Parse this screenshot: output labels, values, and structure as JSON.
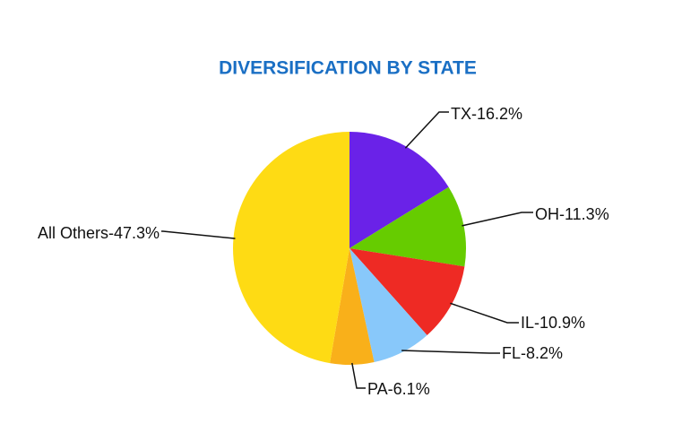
{
  "chart_data": {
    "type": "pie",
    "title": "DIVERSIFICATION BY STATE",
    "values": [
      16.2,
      11.3,
      10.9,
      8.2,
      6.1,
      47.3
    ],
    "value_labels": [
      "TX-16.2%",
      "OH-11.3%",
      "IL-10.9%",
      "FL-8.2%",
      "PA-6.1%",
      "All Others-47.3%"
    ],
    "colors": [
      "#6a22e8",
      "#66cc00",
      "#ee2a24",
      "#88c8fa",
      "#f9b01a",
      "#fedb14"
    ]
  }
}
